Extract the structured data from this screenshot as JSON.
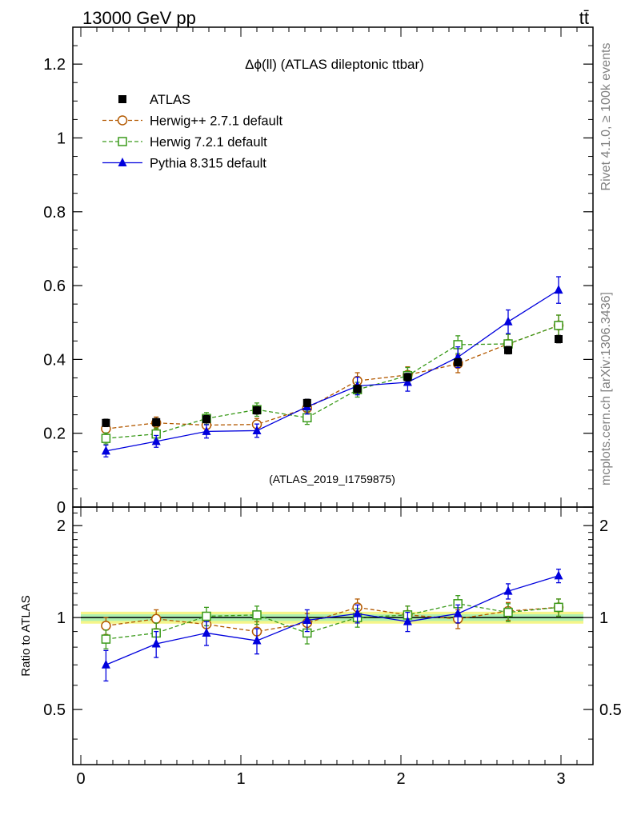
{
  "header": {
    "left": "13000 GeV pp",
    "right": "tt̄"
  },
  "side_labels": {
    "rivet": "Rivet 4.1.0, ≥ 100k events",
    "mcplots": "mcplots.cern.ch [arXiv:1306.3436]"
  },
  "colors": {
    "atlas": "#000000",
    "herwigpp": "#b35900",
    "herwig7": "#3a9a1a",
    "pythia": "#0000dd",
    "band_outer": "#f5f58a",
    "band_inner": "#aef0b0"
  },
  "chart_data": [
    {
      "type": "scatter",
      "title": "Δϕ(ll) (ATLAS dileptonic ttbar)",
      "watermark": "(ATLAS_2019_I1759875)",
      "xlabel": "",
      "ylabel": "",
      "xlim": [
        -0.05,
        3.2
      ],
      "ylim": [
        0,
        1.3
      ],
      "yticks": [
        0,
        0.2,
        0.4,
        0.6,
        0.8,
        1,
        1.2
      ],
      "ytick_labels": [
        "0",
        "0.2",
        "0.4",
        "0.6",
        "0.8",
        "1",
        "1.2"
      ],
      "legend_position": "top-left",
      "x": [
        0.157,
        0.471,
        0.785,
        1.1,
        1.414,
        1.728,
        2.042,
        2.356,
        2.67,
        2.985
      ],
      "series": [
        {
          "name": "ATLAS",
          "marker": "filled-square",
          "line": "none",
          "values": [
            0.228,
            0.23,
            0.238,
            0.262,
            0.282,
            0.32,
            0.352,
            0.392,
            0.425,
            0.455
          ],
          "errors": [
            0.01,
            0.01,
            0.01,
            0.01,
            0.01,
            0.01,
            0.01,
            0.01,
            0.01,
            0.01
          ]
        },
        {
          "name": "Herwig++ 2.7.1 default",
          "marker": "open-circle",
          "line": "dashed",
          "values": [
            0.212,
            0.228,
            0.222,
            0.224,
            0.268,
            0.342,
            0.358,
            0.388,
            0.442,
            0.492
          ],
          "errors": [
            0.015,
            0.016,
            0.016,
            0.016,
            0.018,
            0.022,
            0.022,
            0.024,
            0.026,
            0.028
          ]
        },
        {
          "name": "Herwig 7.2.1 default",
          "marker": "open-square",
          "line": "dashed",
          "values": [
            0.186,
            0.198,
            0.24,
            0.264,
            0.242,
            0.318,
            0.356,
            0.44,
            0.442,
            0.492
          ],
          "errors": [
            0.015,
            0.016,
            0.016,
            0.018,
            0.018,
            0.02,
            0.022,
            0.024,
            0.026,
            0.028
          ]
        },
        {
          "name": "Pythia 8.315 default",
          "marker": "filled-triangle",
          "line": "solid",
          "values": [
            0.152,
            0.178,
            0.205,
            0.207,
            0.272,
            0.328,
            0.338,
            0.406,
            0.502,
            0.588
          ],
          "errors": [
            0.016,
            0.016,
            0.018,
            0.018,
            0.02,
            0.024,
            0.024,
            0.028,
            0.032,
            0.036
          ]
        }
      ]
    },
    {
      "type": "scatter",
      "title": "",
      "xlabel": "",
      "ylabel": "Ratio to ATLAS",
      "xlim": [
        -0.05,
        3.2
      ],
      "ylim": [
        0.33,
        2.3
      ],
      "yticks": [
        0.5,
        1,
        2
      ],
      "ytick_labels": [
        "0.5",
        "1",
        "2"
      ],
      "xticks": [
        0,
        1,
        2,
        3
      ],
      "xtick_labels": [
        "0",
        "1",
        "2",
        "3"
      ],
      "reference_line": 1,
      "band": {
        "outer": 0.045,
        "inner": 0.025
      },
      "x": [
        0.157,
        0.471,
        0.785,
        1.1,
        1.414,
        1.728,
        2.042,
        2.356,
        2.67,
        2.985
      ],
      "series": [
        {
          "name": "Herwig++ 2.7.1 default",
          "marker": "open-circle",
          "line": "dashed",
          "values": [
            0.94,
            0.99,
            0.95,
            0.9,
            0.96,
            1.08,
            1.02,
            0.99,
            1.05,
            1.08
          ],
          "errors": [
            0.06,
            0.07,
            0.07,
            0.07,
            0.07,
            0.07,
            0.07,
            0.07,
            0.07,
            0.07
          ]
        },
        {
          "name": "Herwig 7.2.1 default",
          "marker": "open-square",
          "line": "dashed",
          "values": [
            0.85,
            0.89,
            1.01,
            1.02,
            0.89,
            1.0,
            1.02,
            1.11,
            1.04,
            1.08
          ],
          "errors": [
            0.06,
            0.07,
            0.07,
            0.07,
            0.07,
            0.07,
            0.07,
            0.07,
            0.07,
            0.07
          ]
        },
        {
          "name": "Pythia 8.315 default",
          "marker": "filled-triangle",
          "line": "solid",
          "values": [
            0.7,
            0.82,
            0.89,
            0.84,
            0.98,
            1.03,
            0.97,
            1.03,
            1.22,
            1.37
          ],
          "errors": [
            0.08,
            0.08,
            0.08,
            0.08,
            0.08,
            0.07,
            0.07,
            0.07,
            0.07,
            0.07
          ]
        }
      ]
    }
  ]
}
